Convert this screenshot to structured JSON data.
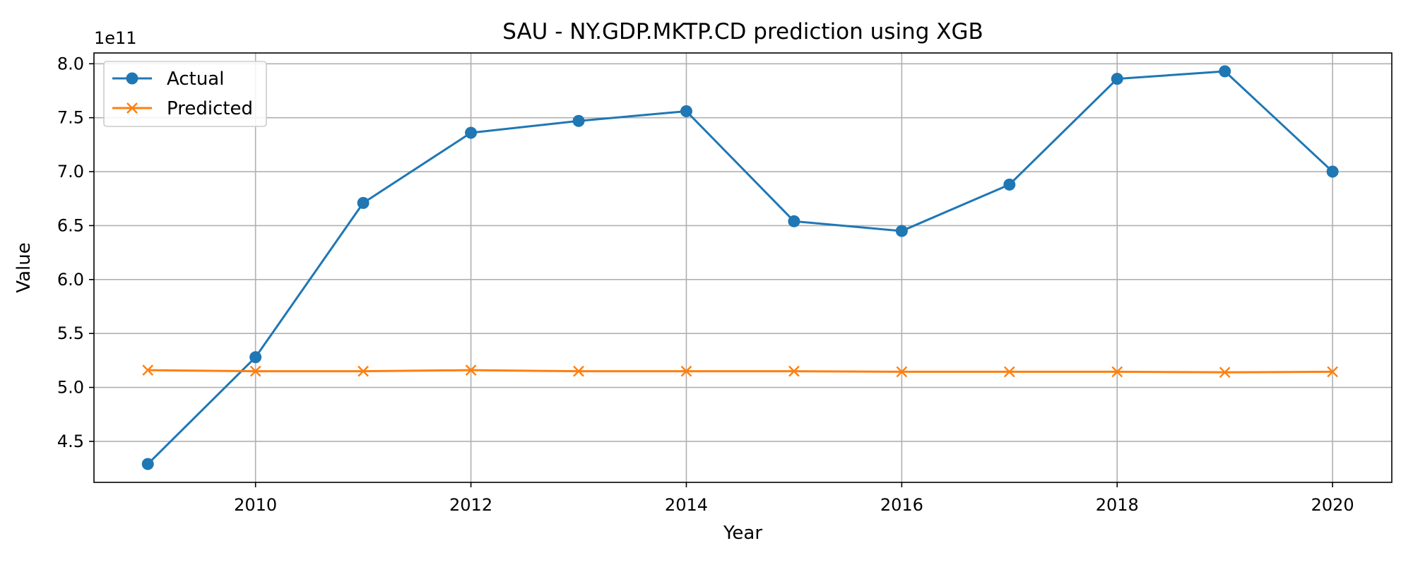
{
  "chart_data": {
    "type": "line",
    "title": "SAU - NY.GDP.MKTP.CD prediction using XGB",
    "xlabel": "Year",
    "ylabel": "Value",
    "y_multiplier_label": "1e11",
    "xlim": [
      2008.5,
      2020.55
    ],
    "ylim": [
      4.12,
      8.1
    ],
    "y_unit_scale": "1e11",
    "xticks": [
      2010,
      2012,
      2014,
      2016,
      2018,
      2020
    ],
    "xtick_labels": [
      "2010",
      "2012",
      "2014",
      "2016",
      "2018",
      "2020"
    ],
    "yticks": [
      4.5,
      5.0,
      5.5,
      6.0,
      6.5,
      7.0,
      7.5,
      8.0
    ],
    "ytick_labels": [
      "4.5",
      "5.0",
      "5.5",
      "6.0",
      "6.5",
      "7.0",
      "7.5",
      "8.0"
    ],
    "grid": true,
    "legend_position": "top-left",
    "x": [
      2009,
      2010,
      2011,
      2012,
      2013,
      2014,
      2015,
      2016,
      2017,
      2018,
      2019,
      2020
    ],
    "series": [
      {
        "name": "Actual",
        "color": "#1f77b4",
        "marker": "circle",
        "values": [
          4.29,
          5.28,
          6.71,
          7.36,
          7.47,
          7.56,
          6.54,
          6.45,
          6.88,
          7.86,
          7.93,
          7.0
        ]
      },
      {
        "name": "Predicted",
        "color": "#ff7f0e",
        "marker": "x",
        "values": [
          5.16,
          5.15,
          5.15,
          5.16,
          5.15,
          5.15,
          5.15,
          5.145,
          5.145,
          5.145,
          5.14,
          5.145
        ]
      }
    ]
  }
}
